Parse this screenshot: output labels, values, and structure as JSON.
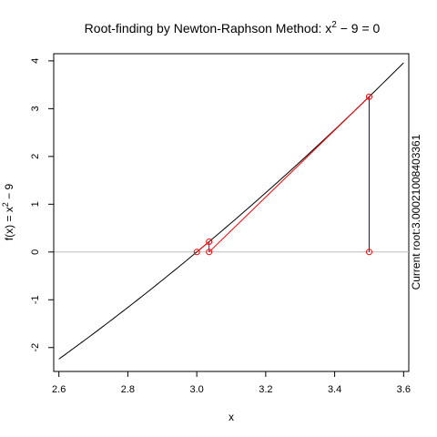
{
  "chart_data": {
    "type": "line",
    "title": {
      "prefix": "Root-finding by Newton-Raphson Method: x",
      "exponent": "2",
      "suffix": " − 9 = 0"
    },
    "xlabel": "x",
    "ylabel": {
      "prefix": "f(x) = x",
      "exponent": "2",
      "suffix": " − 9"
    },
    "side_label": "Current root:3.00021008403361",
    "xlim": [
      2.585,
      3.615
    ],
    "ylim": [
      -2.5,
      4.15
    ],
    "x_ticks": [
      2.6,
      2.8,
      3.0,
      3.2,
      3.4,
      3.6
    ],
    "x_tick_labels": [
      "2.6",
      "2.8",
      "3.0",
      "3.2",
      "3.4",
      "3.6"
    ],
    "y_ticks": [
      -2,
      -1,
      0,
      1,
      2,
      3,
      4
    ],
    "y_tick_labels": [
      "-2",
      "-1",
      "0",
      "1",
      "2",
      "3",
      "4"
    ],
    "function": {
      "name": "f(x) = x^2 - 9",
      "x_range": [
        2.6,
        3.6
      ],
      "samples": [
        [
          2.6,
          -2.24
        ],
        [
          2.7,
          -1.71
        ],
        [
          2.8,
          -1.16
        ],
        [
          2.9,
          -0.59
        ],
        [
          3.0,
          0.0
        ],
        [
          3.1,
          0.61
        ],
        [
          3.2,
          1.24
        ],
        [
          3.3,
          1.89
        ],
        [
          3.4,
          2.56
        ],
        [
          3.5,
          3.25
        ],
        [
          3.6,
          3.96
        ]
      ],
      "color": "#000000"
    },
    "zero_line": {
      "y": 0,
      "color": "#bebebe"
    },
    "iterations": [
      {
        "x": 3.5,
        "fx": 3.25,
        "next_x": 3.03571
      },
      {
        "x": 3.03571,
        "fx": 0.21556,
        "next_x": 3.00021
      }
    ],
    "points": [
      {
        "x": 3.5,
        "y": 0
      },
      {
        "x": 3.5,
        "y": 3.25
      },
      {
        "x": 3.03571,
        "y": 0
      },
      {
        "x": 3.03571,
        "y": 0.21556
      },
      {
        "x": 3.00021,
        "y": 0
      }
    ],
    "colors": {
      "vertical": "#0000ff",
      "tangent": "#ff0000",
      "marker": "#ff0000",
      "marker_vertical_short": "#8b008b"
    }
  }
}
